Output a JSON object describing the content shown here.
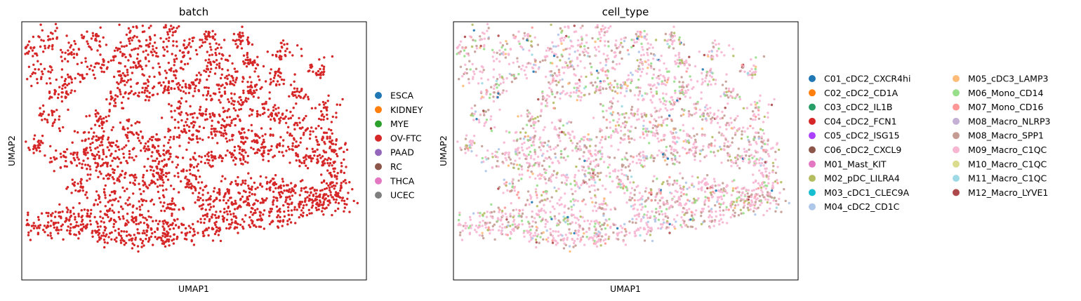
{
  "chart_data": [
    {
      "type": "scatter",
      "title": "batch",
      "xlabel": "UMAP1",
      "ylabel": "UMAP2",
      "xticks": [],
      "yticks": [],
      "xlim": [
        -7,
        8
      ],
      "ylim": [
        -6,
        6
      ],
      "grid": false,
      "legend_position": "right",
      "legend": [
        {
          "label": "ESCA",
          "color": "#1f77b4"
        },
        {
          "label": "KIDNEY",
          "color": "#ff7f0e"
        },
        {
          "label": "MYE",
          "color": "#2ca02c"
        },
        {
          "label": "OV-FTC",
          "color": "#d62728"
        },
        {
          "label": "PAAD",
          "color": "#9467bd"
        },
        {
          "label": "RC",
          "color": "#8c564b"
        },
        {
          "label": "THCA",
          "color": "#e377c2"
        },
        {
          "label": "UCEC",
          "color": "#7f7f7f"
        }
      ],
      "point_color": "#d62728",
      "series": [
        {
          "name": "OV-FTC",
          "color": "#d62728",
          "points": [
            [
              -3.6,
              1.5
            ],
            [
              -2.7,
              2.4
            ],
            [
              -1.7,
              2.8
            ],
            [
              -0.7,
              3.0
            ],
            [
              0.3,
              2.9
            ],
            [
              1.4,
              2.7
            ],
            [
              2.5,
              2.3
            ],
            [
              3.5,
              1.8
            ],
            [
              -4.0,
              0.6
            ],
            [
              -4.2,
              -0.1
            ],
            [
              -3.8,
              -0.7
            ],
            [
              -3.0,
              -1.1
            ],
            [
              -2.0,
              -1.4
            ],
            [
              -1.1,
              -1.4
            ],
            [
              -1.5,
              0.3
            ],
            [
              -0.4,
              0.6
            ],
            [
              0.6,
              0.8
            ],
            [
              1.6,
              0.8
            ],
            [
              2.6,
              0.7
            ],
            [
              3.6,
              0.5
            ],
            [
              4.6,
              0.2
            ],
            [
              5.4,
              -0.3
            ],
            [
              -0.9,
              -0.9
            ],
            [
              0.4,
              -0.7
            ],
            [
              1.3,
              -0.4
            ],
            [
              2.4,
              -0.2
            ],
            [
              3.4,
              0.0
            ],
            [
              -6.4,
              -3.5
            ],
            [
              -5.6,
              -3.7
            ],
            [
              -4.7,
              -3.6
            ],
            [
              -3.7,
              -3.8
            ],
            [
              -2.6,
              -4.0
            ],
            [
              -1.7,
              -4.1
            ],
            [
              -0.8,
              -4.0
            ],
            [
              0.2,
              -3.9
            ],
            [
              1.2,
              -3.7
            ],
            [
              2.2,
              -3.4
            ],
            [
              3.2,
              -3.2
            ],
            [
              4.2,
              -3.1
            ],
            [
              5.1,
              -2.8
            ],
            [
              5.8,
              -2.4
            ],
            [
              -5.2,
              -2.9
            ],
            [
              -4.3,
              -3.0
            ],
            [
              -3.3,
              -3.0
            ],
            [
              -2.4,
              -3.2
            ],
            [
              -1.4,
              -3.4
            ],
            [
              -0.5,
              -3.4
            ],
            [
              0.9,
              -2.3
            ],
            [
              1.8,
              -1.9
            ],
            [
              2.8,
              -1.7
            ],
            [
              3.8,
              -1.6
            ],
            [
              4.7,
              -1.7
            ],
            [
              5.6,
              -1.9
            ],
            [
              6.2,
              -2.4
            ],
            [
              1.3,
              -2.9
            ],
            [
              2.3,
              -2.6
            ],
            [
              3.3,
              -2.4
            ],
            [
              4.3,
              -2.3
            ],
            [
              6.2,
              -0.4
            ],
            [
              6.5,
              -1.0
            ],
            [
              6.7,
              -1.6
            ],
            [
              6.8,
              -2.2
            ],
            [
              6.6,
              0.2
            ],
            [
              6.0,
              0.7
            ],
            [
              5.1,
              1.2
            ],
            [
              4.2,
              1.6
            ],
            [
              -5.4,
              2.6
            ],
            [
              -4.6,
              3.3
            ],
            [
              -3.6,
              4.0
            ],
            [
              -2.5,
              4.6
            ],
            [
              -1.2,
              4.7
            ],
            [
              0.2,
              4.8
            ],
            [
              1.6,
              4.5
            ],
            [
              2.9,
              4.1
            ],
            [
              4.0,
              3.4
            ],
            [
              5.0,
              2.6
            ],
            [
              -6.1,
              3.6
            ],
            [
              -5.7,
              1.6
            ],
            [
              -6.3,
              0.3
            ],
            [
              -5.2,
              -0.4
            ],
            [
              -4.5,
              -1.7
            ],
            [
              -3.2,
              -2.1
            ],
            [
              -2.0,
              -2.4
            ],
            [
              -0.6,
              -2.5
            ],
            [
              0.3,
              -1.6
            ],
            [
              -2.6,
              3.4
            ],
            [
              -1.8,
              3.9
            ],
            [
              -0.3,
              3.8
            ],
            [
              1.0,
              3.7
            ],
            [
              2.1,
              3.3
            ],
            [
              3.1,
              2.9
            ],
            [
              -3.9,
              5.2
            ],
            [
              -2.1,
              5.4
            ],
            [
              -0.5,
              5.6
            ],
            [
              1.1,
              5.3
            ],
            [
              2.5,
              5.1
            ],
            [
              4.4,
              4.6
            ],
            [
              5.9,
              3.8
            ],
            [
              6.3,
              1.9
            ],
            [
              -6.7,
              4.6
            ],
            [
              -5.8,
              5.3
            ],
            [
              -4.9,
              4.5
            ],
            [
              -0.1,
              1.8
            ],
            [
              0.9,
              1.6
            ],
            [
              2.0,
              1.5
            ],
            [
              -2.3,
              0.9
            ],
            [
              -3.2,
              0.2
            ],
            [
              -2.6,
              -0.3
            ],
            [
              -1.0,
              -0.2
            ]
          ]
        }
      ]
    },
    {
      "type": "scatter",
      "title": "cell_type",
      "xlabel": "UMAP1",
      "ylabel": "UMAP2",
      "xticks": [],
      "yticks": [],
      "xlim": [
        -7,
        8
      ],
      "ylim": [
        -6,
        6
      ],
      "grid": false,
      "legend_position": "right",
      "legend_columns": 2,
      "legend": [
        {
          "label": "C01_cDC2_CXCR4hi",
          "color": "#1f77b4"
        },
        {
          "label": "C02_cDC2_CD1A",
          "color": "#ff7f0e"
        },
        {
          "label": "C03_cDC2_IL1B",
          "color": "#279e68"
        },
        {
          "label": "C04_cDC2_FCN1",
          "color": "#d62728"
        },
        {
          "label": "C05_cDC2_ISG15",
          "color": "#aa40fc"
        },
        {
          "label": "C06_cDC2_CXCL9",
          "color": "#8c564b"
        },
        {
          "label": "M01_Mast_KIT",
          "color": "#e377c2"
        },
        {
          "label": "M02_pDC_LILRA4",
          "color": "#b5bd61"
        },
        {
          "label": "M03_cDC1_CLEC9A",
          "color": "#17becf"
        },
        {
          "label": "M04_cDC2_CD1C",
          "color": "#aec7e8"
        },
        {
          "label": "M05_cDC3_LAMP3",
          "color": "#ffbb78"
        },
        {
          "label": "M06_Mono_CD14",
          "color": "#98df8a"
        },
        {
          "label": "M07_Mono_CD16",
          "color": "#ff9896"
        },
        {
          "label": "M08_Macro_NLRP3",
          "color": "#c5b0d5"
        },
        {
          "label": "M08_Macro_SPP1",
          "color": "#c49c94"
        },
        {
          "label": "M09_Macro_C1QC",
          "color": "#f7b6d2"
        },
        {
          "label": "M10_Macro_C1QC",
          "color": "#dbdb8d"
        },
        {
          "label": "M11_Macro_C1QC",
          "color": "#9edae5"
        },
        {
          "label": "M12_Macro_LYVE1",
          "color": "#ad494a"
        }
      ],
      "note_series": "same embedding as batch panel; points colored by cell_type, dominated by M09_Macro_C1QC and M08_Macro_SPP1",
      "series": [
        {
          "name": "M09_Macro_C1QC",
          "color": "#f7b6d2",
          "share": 0.55
        },
        {
          "name": "M08_Macro_SPP1",
          "color": "#c49c94",
          "share": 0.2
        },
        {
          "name": "M06_Mono_CD14",
          "color": "#98df8a",
          "share": 0.08
        },
        {
          "name": "M02_pDC_LILRA4",
          "color": "#b5bd61",
          "share": 0.05
        },
        {
          "name": "M04_cDC2_CD1C",
          "color": "#aec7e8",
          "share": 0.04
        },
        {
          "name": "M07_Mono_CD16",
          "color": "#ff9896",
          "share": 0.03
        },
        {
          "name": "M05_cDC3_LAMP3",
          "color": "#ffbb78",
          "share": 0.02
        },
        {
          "name": "C01_cDC2_CXCR4hi",
          "color": "#1f77b4",
          "share": 0.01
        },
        {
          "name": "M11_Macro_C1QC",
          "color": "#9edae5",
          "share": 0.01
        },
        {
          "name": "M12_Macro_LYVE1",
          "color": "#ad494a",
          "share": 0.01
        }
      ]
    }
  ]
}
